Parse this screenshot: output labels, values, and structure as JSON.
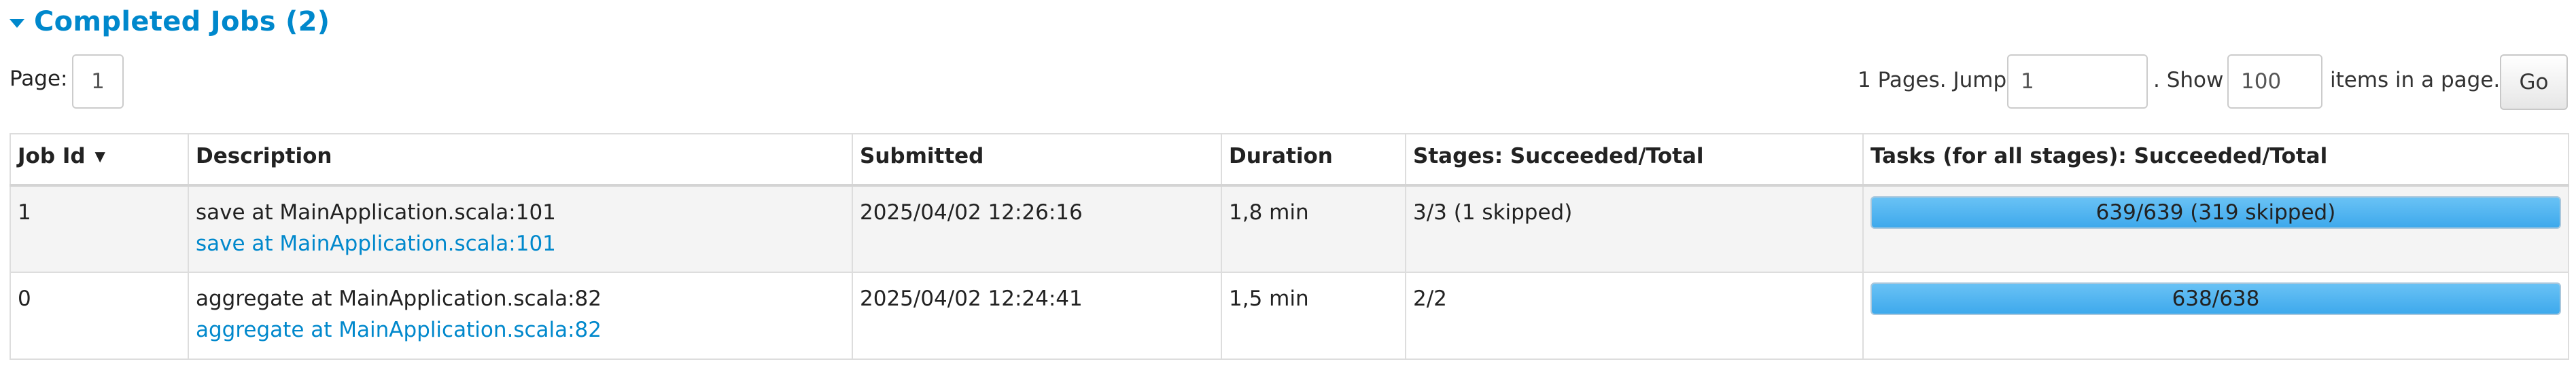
{
  "section": {
    "title": "Completed Jobs (2)"
  },
  "paging": {
    "page_label": "Page:",
    "page_value": "1",
    "pages_text": "1 Pages. Jump to",
    "jump_value": "1",
    "show_text": ". Show",
    "show_value": "100",
    "items_text": "items in a page.",
    "go_label": "Go"
  },
  "table": {
    "headers": {
      "job_id": "Job Id",
      "job_id_sort": "▼",
      "description": "Description",
      "submitted": "Submitted",
      "duration": "Duration",
      "stages": "Stages: Succeeded/Total",
      "tasks": "Tasks (for all stages): Succeeded/Total"
    },
    "rows": [
      {
        "job_id": "1",
        "description": "save at MainApplication.scala:101",
        "description_link": "save at MainApplication.scala:101",
        "submitted": "2025/04/02 12:26:16",
        "duration": "1,8 min",
        "stages": "3/3 (1 skipped)",
        "tasks_text": "639/639 (319 skipped)",
        "tasks_progress": 1.0
      },
      {
        "job_id": "0",
        "description": "aggregate at MainApplication.scala:82",
        "description_link": "aggregate at MainApplication.scala:82",
        "submitted": "2025/04/02 12:24:41",
        "duration": "1,5 min",
        "stages": "2/2",
        "tasks_text": "638/638",
        "tasks_progress": 1.0
      }
    ]
  },
  "colors": {
    "link": "#0088cc",
    "progress_fill": "#3ea9ec"
  }
}
